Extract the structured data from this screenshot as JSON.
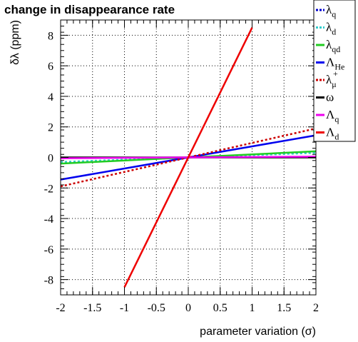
{
  "chart_data": {
    "type": "line",
    "title": "change in disappearance rate",
    "xlabel": "parameter variation (σ)",
    "ylabel": "δλ (ppm)",
    "xlim": [
      -2,
      2
    ],
    "ylim": [
      -9,
      9
    ],
    "xticks": [
      -2,
      -1.5,
      -1,
      -0.5,
      0,
      0.5,
      1,
      1.5,
      2
    ],
    "xtick_labels": [
      "-2",
      "-1.5",
      "-1",
      "-0.5",
      "0",
      "0.5",
      "1",
      "1.5",
      "2"
    ],
    "yticks": [
      -8,
      -6,
      -4,
      -2,
      0,
      2,
      4,
      6,
      8
    ],
    "ytick_labels": [
      "-8",
      "-6",
      "-4",
      "-2",
      "0",
      "2",
      "4",
      "6",
      "8"
    ],
    "grid": true,
    "legend_position": "top-right",
    "series": [
      {
        "name": "λq",
        "label_main": "λ",
        "label_sub": "q",
        "label_sup": "",
        "color": "#0000cc",
        "dash": "dotted",
        "x": [
          -2,
          2
        ],
        "y": [
          -0.35,
          0.35
        ]
      },
      {
        "name": "λd",
        "label_main": "λ",
        "label_sub": "d",
        "label_sup": "",
        "color": "#33cccc",
        "dash": "dotted",
        "x": [
          -2,
          2
        ],
        "y": [
          -0.3,
          0.3
        ]
      },
      {
        "name": "λqd",
        "label_main": "λ",
        "label_sub": "qd",
        "label_sup": "",
        "color": "#22cc22",
        "dash": "solid",
        "x": [
          -2,
          2
        ],
        "y": [
          -0.4,
          0.4
        ]
      },
      {
        "name": "ΛHe",
        "label_main": "Λ",
        "label_sub": "He",
        "label_sup": "",
        "color": "#0000ee",
        "dash": "solid",
        "x": [
          -2,
          2
        ],
        "y": [
          -1.45,
          1.45
        ]
      },
      {
        "name": "λμ+",
        "label_main": "λ",
        "label_sub": "μ",
        "label_sup": "+",
        "color": "#cc0000",
        "dash": "dotted",
        "x": [
          -2,
          2
        ],
        "y": [
          -1.9,
          1.9
        ]
      },
      {
        "name": "ω",
        "label_main": "ω",
        "label_sub": "",
        "label_sup": "",
        "color": "#000000",
        "dash": "solid",
        "x": [
          -2,
          2
        ],
        "y": [
          0,
          0
        ]
      },
      {
        "name": "Λq",
        "label_main": "Λ",
        "label_sub": "q",
        "label_sup": "",
        "color": "#ee00ee",
        "dash": "solid",
        "x": [
          -2,
          2
        ],
        "y": [
          -0.05,
          0.05
        ]
      },
      {
        "name": "Λd",
        "label_main": "Λ",
        "label_sub": "d",
        "label_sup": "",
        "color": "#ee0000",
        "dash": "solid",
        "x": [
          -1,
          1
        ],
        "y": [
          -8.5,
          8.5
        ]
      }
    ]
  }
}
